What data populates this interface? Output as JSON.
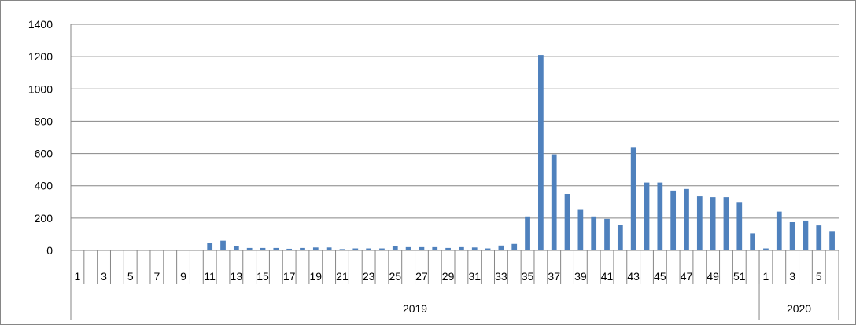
{
  "chart_data": {
    "type": "bar",
    "title": "",
    "xlabel": "",
    "ylabel": "",
    "ylim": [
      0,
      1400
    ],
    "yticks": [
      "0",
      "200",
      "400",
      "600",
      "800",
      "1000",
      "1200",
      "1400"
    ],
    "grid": true,
    "legend": "none",
    "bar_color": "#4f81bd",
    "grid_color": "#868686",
    "groups": [
      {
        "label": "2019",
        "categories": [
          "1",
          "2",
          "3",
          "4",
          "5",
          "6",
          "7",
          "8",
          "9",
          "10",
          "11",
          "12",
          "13",
          "14",
          "15",
          "16",
          "17",
          "18",
          "19",
          "20",
          "21",
          "22",
          "23",
          "24",
          "25",
          "26",
          "27",
          "28",
          "29",
          "30",
          "31",
          "32",
          "33",
          "34",
          "35",
          "36",
          "37",
          "38",
          "39",
          "40",
          "41",
          "42",
          "43",
          "44",
          "45",
          "46",
          "47",
          "48",
          "49",
          "50",
          "51",
          "52"
        ],
        "tick_labels": [
          "1",
          "",
          "3",
          "",
          "5",
          "",
          "7",
          "",
          "9",
          "",
          "11",
          "",
          "13",
          "",
          "15",
          "",
          "17",
          "",
          "19",
          "",
          "21",
          "",
          "23",
          "",
          "25",
          "",
          "27",
          "",
          "29",
          "",
          "31",
          "",
          "33",
          "",
          "35",
          "",
          "37",
          "",
          "39",
          "",
          "41",
          "",
          "43",
          "",
          "45",
          "",
          "47",
          "",
          "49",
          "",
          "51",
          ""
        ],
        "values": [
          0,
          0,
          0,
          0,
          0,
          0,
          0,
          0,
          0,
          0,
          48,
          60,
          25,
          15,
          15,
          15,
          10,
          15,
          18,
          18,
          8,
          12,
          12,
          12,
          25,
          20,
          20,
          20,
          15,
          20,
          18,
          12,
          30,
          40,
          210,
          1210,
          595,
          350,
          255,
          210,
          195,
          160,
          640,
          420,
          420,
          370,
          380,
          335,
          330,
          330,
          300,
          105
        ]
      },
      {
        "label": "2020",
        "categories": [
          "1",
          "2",
          "3",
          "4",
          "5",
          "6"
        ],
        "tick_labels": [
          "1",
          "",
          "3",
          "",
          "5",
          ""
        ],
        "values": [
          12,
          240,
          175,
          185,
          155,
          120
        ]
      }
    ]
  }
}
